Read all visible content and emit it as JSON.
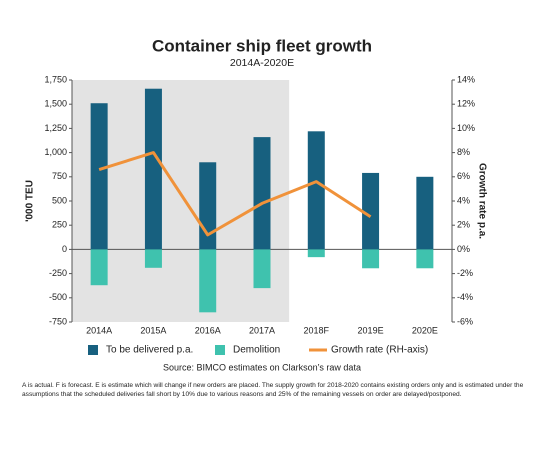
{
  "chart_data": {
    "type": "bar",
    "title": "Container ship fleet growth",
    "subtitle": "2014A-2020E",
    "y_label": "'000 TEU",
    "y2_label": "Growth rate p.a.",
    "source": "Source: BIMCO estimates on Clarkson’s raw data",
    "footnote": "A is actual. F is forecast. E is estimate which will change if new orders are placed. The supply growth for 2018-2020 contains existing orders only and is estimated under the assumptions that the scheduled deliveries fall short by 10% due to various reasons and 25% of the remaining vessels on order are delayed/postponed.",
    "categories": [
      "2014A",
      "2015A",
      "2016A",
      "2017A",
      "2018F",
      "2019E",
      "2020E"
    ],
    "shaded_through": "2017A",
    "series": [
      {
        "name": "To be delivered p.a.",
        "color": "#17607f",
        "values": [
          1510,
          1660,
          900,
          1160,
          1220,
          790,
          750
        ]
      },
      {
        "name": "Demolition",
        "color": "#3fc2ae",
        "values": [
          -370,
          -190,
          -650,
          -400,
          -80,
          -195,
          -195
        ]
      },
      {
        "name": "Growth rate (RH-axis)",
        "color": "#f0923a",
        "type": "line",
        "axis": "y2",
        "values": [
          6.6,
          8.0,
          1.2,
          3.8,
          5.6,
          2.7,
          null
        ]
      }
    ],
    "ylim": [
      -750,
      1750
    ],
    "yticks": [
      -750,
      -500,
      -250,
      0,
      250,
      500,
      750,
      {
        "value": 1000,
        "label": "1,000"
      },
      {
        "value": 1250,
        "label": "1,250"
      },
      {
        "value": 1500,
        "label": "1,500"
      },
      {
        "value": 1750,
        "label": "1,750"
      }
    ],
    "y2lim": [
      -6,
      14
    ],
    "y2ticks": [
      {
        "value": -6,
        "label": "-6%"
      },
      {
        "value": -4,
        "label": "-4%"
      },
      {
        "value": -2,
        "label": "-2%"
      },
      {
        "value": 0,
        "label": "0%"
      },
      {
        "value": 2,
        "label": "2%"
      },
      {
        "value": 4,
        "label": "4%"
      },
      {
        "value": 6,
        "label": "6%"
      },
      {
        "value": 8,
        "label": "8%"
      },
      {
        "value": 10,
        "label": "10%"
      },
      {
        "value": 12,
        "label": "12%"
      },
      {
        "value": 14,
        "label": "14%"
      }
    ]
  }
}
